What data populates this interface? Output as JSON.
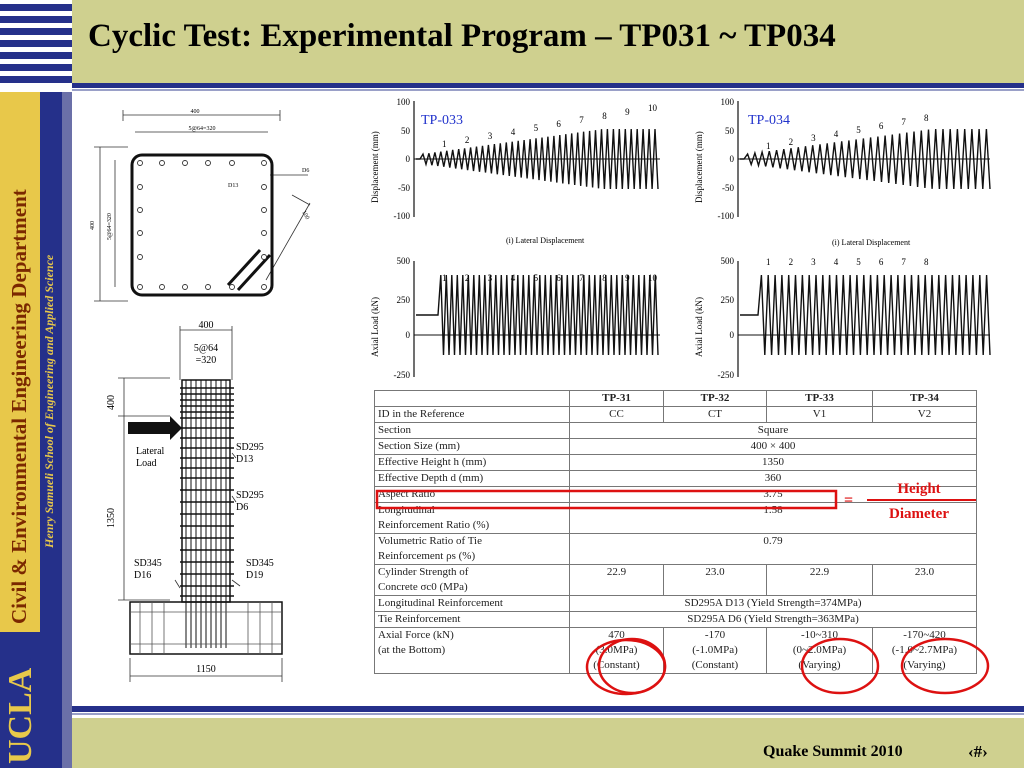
{
  "header": {
    "title": "Cyclic Test: Experimental Program – TP031 ~ TP034"
  },
  "sidebar": {
    "department": "Civil & Environmental Engineering Department",
    "school": "Henry Samueli School of Engineering and Applied Science",
    "logo": "UCLA"
  },
  "footer": {
    "event": "Quake Summit 2010",
    "page": "‹#›"
  },
  "section_drawing": {
    "dim_top": "400",
    "dim_spacing": "5@64=320",
    "bar_label": "D13",
    "tie_label": "D6",
    "dim_left": "400",
    "dim_left_inner": "5@64=320",
    "dim_diag": "100"
  },
  "elevation_drawing": {
    "dim_top": "400",
    "dim_spacing_1": "5@64",
    "dim_spacing_2": "=320",
    "dim_head": "400",
    "dim_height": "1350",
    "dim_base": "1150",
    "load_label_1": "Lateral",
    "load_label_2": "Load",
    "sd295_d13_1": "SD295",
    "sd295_d13_2": "D13",
    "sd295_d6_1": "SD295",
    "sd295_d6_2": "D6",
    "sd345_d16_1": "SD345",
    "sd345_d16_2": "D16",
    "sd345_d19_1": "SD345",
    "sd345_d19_2": "D19"
  },
  "charts": {
    "disp_ylabel": "Displacement (mm)",
    "axial_ylabel": "Axial Load (kN)",
    "disp_caption": "(i)  Lateral  Displacement",
    "disp_ticks": [
      "100",
      "50",
      "0",
      "-50",
      "-100"
    ],
    "axial_ticks": [
      "500",
      "250",
      "0",
      "-250"
    ],
    "tp033_label": "TP-033",
    "tp034_label": "TP-034",
    "cycles_10": [
      "1",
      "2",
      "3",
      "4",
      "5",
      "6",
      "7",
      "8",
      "9",
      "10"
    ],
    "cycles_8": [
      "1",
      "2",
      "3",
      "4",
      "5",
      "6",
      "7",
      "8"
    ]
  },
  "table": {
    "headers": [
      "",
      "TP-31",
      "TP-32",
      "TP-33",
      "TP-34"
    ],
    "id_label": "ID in the Reference",
    "ids": [
      "CC",
      "CT",
      "V1",
      "V2"
    ],
    "section_label": "Section",
    "section_value": "Square",
    "size_label": "Section Size (mm)",
    "size_value": "400 × 400",
    "eff_height_label": "Effective Height  h  (mm)",
    "eff_height_value": "1350",
    "eff_depth_label": "Effective Depth  d  (mm)",
    "eff_depth_value": "360",
    "aspect_label": "Aspect Ratio",
    "aspect_value": "3.75",
    "long_label_1": "Longitudinal",
    "long_label_2": "Reinforcement Ratio (%)",
    "long_value": "1.58",
    "vol_label_1": "Volumetric Ratio of Tie",
    "vol_label_2": "Reinforcement  ρs  (%)",
    "vol_value": "0.79",
    "cyl_label_1": "Cylinder Strength of",
    "cyl_label_2": "Concrete  σc0  (MPa)",
    "cyl_values": [
      "22.9",
      "23.0",
      "22.9",
      "23.0"
    ],
    "long_reinf_label": "Longitudinal Reinforcement",
    "long_reinf_value": "SD295A D13 (Yield Strength=374MPa)",
    "tie_reinf_label": "Tie Reinforcement",
    "tie_reinf_value": "SD295A D6 (Yield Strength=363MPa)",
    "axial_label_1": "Axial Force (kN)",
    "axial_label_2": "(at the Bottom)",
    "axial_force": [
      "470",
      "-170",
      "-10~310",
      "-170~420"
    ],
    "axial_stress": [
      "(3.0MPa)",
      "(-1.0MPa)",
      "(0~2.0MPa)",
      "(-1.0~2.7MPa)"
    ],
    "axial_type": [
      "(Constant)",
      "(Constant)",
      "(Varying)",
      "(Varying)"
    ]
  },
  "annotation": {
    "equals": "=",
    "numerator": "Height",
    "denominator": "Diameter"
  },
  "colors": {
    "accent_red": "#dd1111",
    "navy": "#25308a",
    "olive": "#cfd08f",
    "gold": "#e8c84a"
  }
}
